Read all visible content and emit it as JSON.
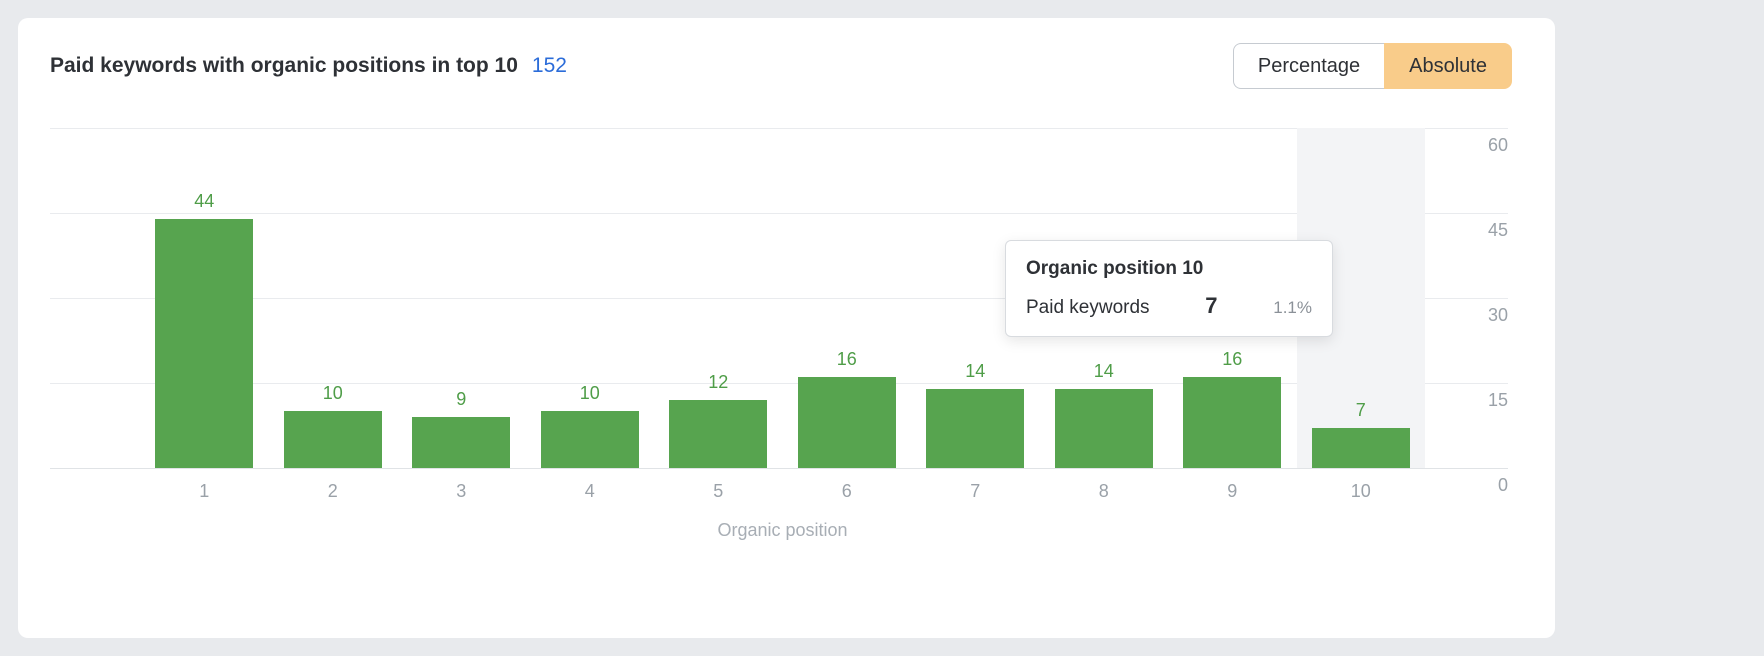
{
  "colors": {
    "background": "#e8eaed",
    "card": "#ffffff",
    "bar": "#57a44f",
    "bar_label": "#4f9d48",
    "count_link": "#2b6cd9",
    "toggle_selected_bg": "#f9cc8a",
    "grid": "#e9ebee",
    "axis_text": "#9aa1a8",
    "hover_band": "#f3f4f6"
  },
  "header": {
    "title": "Paid keywords with organic positions in top 10",
    "count": "152",
    "toggle": {
      "percentage_label": "Percentage",
      "absolute_label": "Absolute",
      "selected": "Absolute"
    }
  },
  "chart_data": {
    "type": "bar",
    "title": "Paid keywords with organic positions in top 10",
    "categories": [
      "1",
      "2",
      "3",
      "4",
      "5",
      "6",
      "7",
      "8",
      "9",
      "10"
    ],
    "values": [
      44,
      10,
      9,
      10,
      12,
      16,
      14,
      14,
      16,
      7
    ],
    "xlabel": "Organic position",
    "ylabel": "",
    "ylim": [
      0,
      60
    ],
    "yticks": [
      0,
      15,
      30,
      45,
      60
    ],
    "grid": true,
    "legend": false,
    "yaxis_position": "right",
    "bar_color": "#57a44f",
    "highlighted_category": "10"
  },
  "tooltip": {
    "title": "Organic position 10",
    "label": "Paid keywords",
    "value": "7",
    "percent": "1.1%"
  }
}
